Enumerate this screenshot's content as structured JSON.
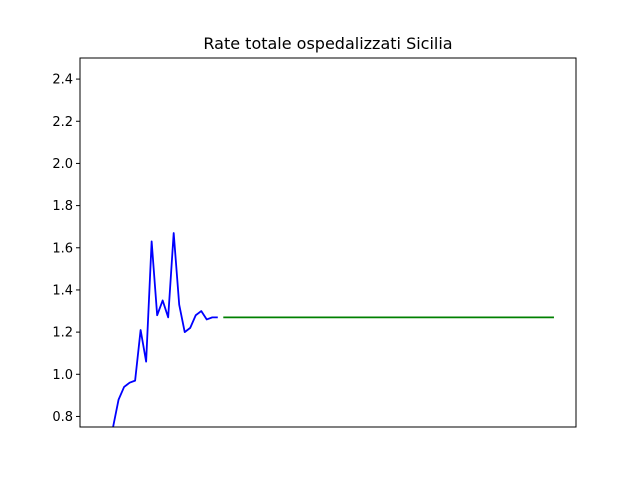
{
  "chart_data": {
    "type": "line",
    "title": "Rate totale ospedalizzati Sicilia",
    "xlabel": "",
    "ylabel": "",
    "xlim": [
      0,
      90
    ],
    "ylim": [
      0.75,
      2.5
    ],
    "yticks": [
      0.8,
      1.0,
      1.2,
      1.4,
      1.6,
      1.8,
      2.0,
      2.2,
      2.4
    ],
    "ytick_labels": [
      "0.8",
      "1.0",
      "1.2",
      "1.4",
      "1.6",
      "1.8",
      "2.0",
      "2.2",
      "2.4"
    ],
    "xticks_visible": false,
    "grid": false,
    "series": [
      {
        "color": "#0000ff",
        "x": [
          0,
          6,
          7,
          8,
          9,
          10,
          11,
          12,
          13,
          14,
          15,
          16,
          17,
          18,
          19,
          20,
          21,
          22,
          23,
          24,
          25
        ],
        "y": [
          0.62,
          0.75,
          0.88,
          0.94,
          0.96,
          0.97,
          1.21,
          1.06,
          1.63,
          1.28,
          1.35,
          1.27,
          1.67,
          1.33,
          1.2,
          1.22,
          1.28,
          1.3,
          1.26,
          1.27,
          1.27
        ]
      },
      {
        "color": "#008000",
        "x": [
          26,
          86
        ],
        "y": [
          1.27,
          1.27
        ]
      }
    ]
  }
}
